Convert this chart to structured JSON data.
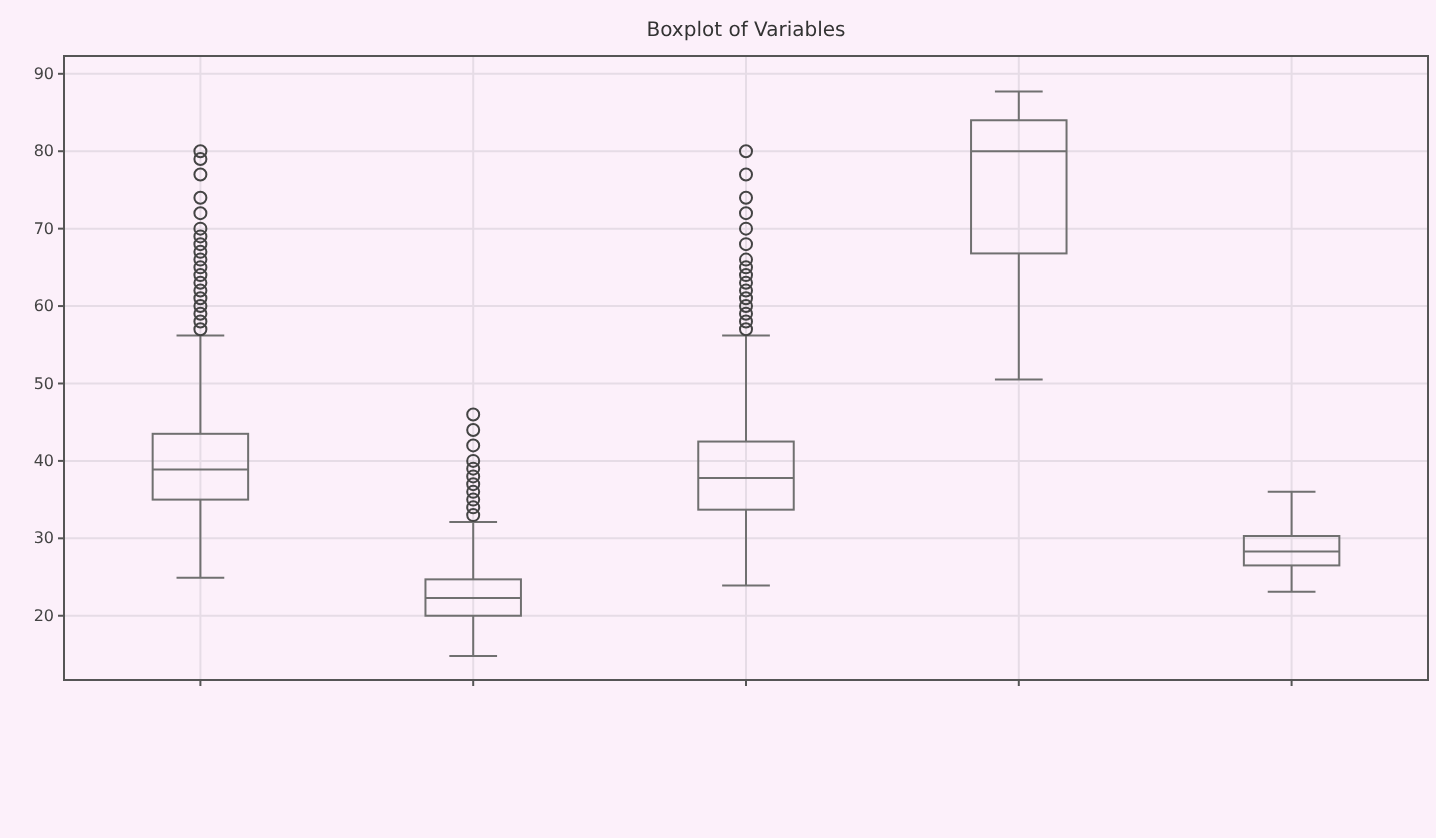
{
  "chart_data": {
    "type": "box",
    "title": "Boxplot of Variables",
    "categories": [
      null,
      null,
      null,
      null,
      null
    ],
    "color": "#707070",
    "boxes": [
      {
        "low": 24.9,
        "q1": 35,
        "median": 38.9,
        "q3": 43.5,
        "high": 56.2,
        "outliers": [
          57,
          58,
          59,
          60,
          61,
          62,
          63,
          64,
          65,
          66,
          67,
          68,
          69,
          70,
          72,
          74,
          77,
          79,
          80
        ]
      },
      {
        "low": 14.8,
        "q1": 20,
        "median": 22.3,
        "q3": 24.7,
        "high": 32.1,
        "outliers": [
          33,
          34,
          35,
          36,
          37,
          38,
          39,
          40,
          42,
          44,
          46
        ]
      },
      {
        "low": 23.9,
        "q1": 33.7,
        "median": 37.8,
        "q3": 42.5,
        "high": 56.2,
        "outliers": [
          57,
          58,
          59,
          60,
          61,
          62,
          63,
          64,
          65,
          66,
          68,
          70,
          72,
          74,
          77,
          80
        ]
      },
      {
        "low": 50.5,
        "q1": 66.8,
        "median": 80,
        "q3": 84,
        "high": 87.7
      },
      {
        "low": 23.1,
        "q1": 26.5,
        "median": 28.3,
        "q3": 30.3,
        "high": 36
      }
    ],
    "ylim": [
      11.7,
      92.3
    ],
    "yticks": [
      20,
      30,
      40,
      50,
      60,
      70,
      80,
      90
    ],
    "grid": true
  }
}
